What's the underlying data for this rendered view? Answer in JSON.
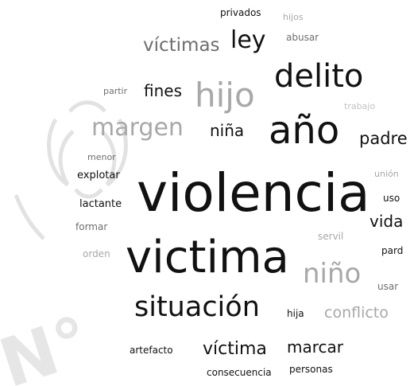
{
  "colors": {
    "dark": "#111111",
    "mid": "#6e6e6e",
    "light": "#a8a8a8",
    "faint": "#c2c2c2",
    "background": "#ffffff",
    "watermark": "#e3e3e3"
  },
  "watermark": {
    "seal_icon": "eagle-seal-icon",
    "stamp_text": "N°"
  },
  "words": [
    {
      "text": "privados",
      "tone": "dark"
    },
    {
      "text": "hijos",
      "tone": "light"
    },
    {
      "text": "víctimas",
      "tone": "mid"
    },
    {
      "text": "ley",
      "tone": "dark"
    },
    {
      "text": "abusar",
      "tone": "mid"
    },
    {
      "text": "delito",
      "tone": "dark"
    },
    {
      "text": "partir",
      "tone": "mid"
    },
    {
      "text": "fines",
      "tone": "dark"
    },
    {
      "text": "hijo",
      "tone": "light"
    },
    {
      "text": "trabajo",
      "tone": "faint"
    },
    {
      "text": "margen",
      "tone": "light"
    },
    {
      "text": "niña",
      "tone": "dark"
    },
    {
      "text": "año",
      "tone": "dark"
    },
    {
      "text": "padre",
      "tone": "dark"
    },
    {
      "text": "menor",
      "tone": "mid"
    },
    {
      "text": "explotar",
      "tone": "dark"
    },
    {
      "text": "violencia",
      "tone": "dark"
    },
    {
      "text": "unión",
      "tone": "light"
    },
    {
      "text": "lactante",
      "tone": "dark"
    },
    {
      "text": "uso",
      "tone": "dark"
    },
    {
      "text": "vida",
      "tone": "dark"
    },
    {
      "text": "formar",
      "tone": "mid"
    },
    {
      "text": "servil",
      "tone": "light"
    },
    {
      "text": "orden",
      "tone": "light"
    },
    {
      "text": "victima",
      "tone": "dark"
    },
    {
      "text": "niño",
      "tone": "light"
    },
    {
      "text": "pard",
      "tone": "dark"
    },
    {
      "text": "usar",
      "tone": "mid"
    },
    {
      "text": "situación",
      "tone": "dark"
    },
    {
      "text": "hija",
      "tone": "dark"
    },
    {
      "text": "conflicto",
      "tone": "light"
    },
    {
      "text": "artefacto",
      "tone": "dark"
    },
    {
      "text": "víctima",
      "tone": "dark"
    },
    {
      "text": "marcar",
      "tone": "dark"
    },
    {
      "text": "consecuencia",
      "tone": "dark"
    },
    {
      "text": "personas",
      "tone": "dark"
    }
  ]
}
